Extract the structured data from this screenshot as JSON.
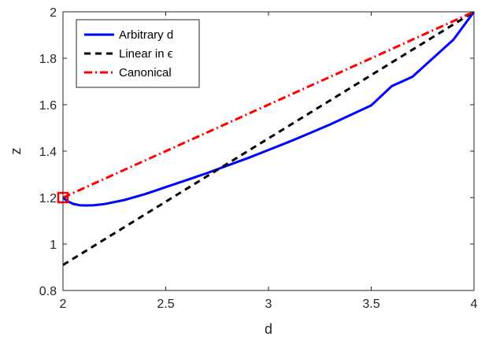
{
  "chart_data": {
    "type": "line",
    "xlabel": "d",
    "ylabel": "z",
    "xlim": [
      2,
      4
    ],
    "ylim": [
      0.8,
      2
    ],
    "xticks": [
      "2",
      "2.5",
      "3",
      "3.5",
      "4"
    ],
    "yticks": [
      "0.8",
      "1",
      "1.2",
      "1.4",
      "1.6",
      "1.8",
      "2"
    ],
    "grid": false,
    "legend_position": "top-left",
    "series": [
      {
        "name": "Arbitrary d",
        "color": "#0000ff",
        "style": "solid",
        "x": [
          2.0,
          2.02,
          2.05,
          2.08,
          2.11,
          2.15,
          2.2,
          2.3,
          2.4,
          2.5,
          2.6,
          2.7,
          2.8,
          2.9,
          3.0,
          3.1,
          3.2,
          3.3,
          3.4,
          3.5,
          3.6,
          3.7,
          3.8,
          3.9,
          4.0
        ],
        "y": [
          1.2,
          1.185,
          1.173,
          1.167,
          1.166,
          1.167,
          1.172,
          1.19,
          1.215,
          1.245,
          1.275,
          1.305,
          1.338,
          1.37,
          1.405,
          1.44,
          1.477,
          1.515,
          1.556,
          1.597,
          1.68,
          1.72,
          1.8,
          1.88,
          2.0
        ]
      },
      {
        "name": "Linear in ϵ",
        "color": "#000000",
        "style": "dashed",
        "x": [
          2.0,
          4.0
        ],
        "y": [
          0.91,
          2.0
        ]
      },
      {
        "name": "Canonical",
        "color": "#ff0000",
        "style": "dashdot",
        "x": [
          2.0,
          4.0
        ],
        "y": [
          1.2,
          2.0
        ]
      }
    ],
    "marker": {
      "shape": "square",
      "color": "#ff0000",
      "x": 2.0,
      "y": 1.2
    }
  }
}
